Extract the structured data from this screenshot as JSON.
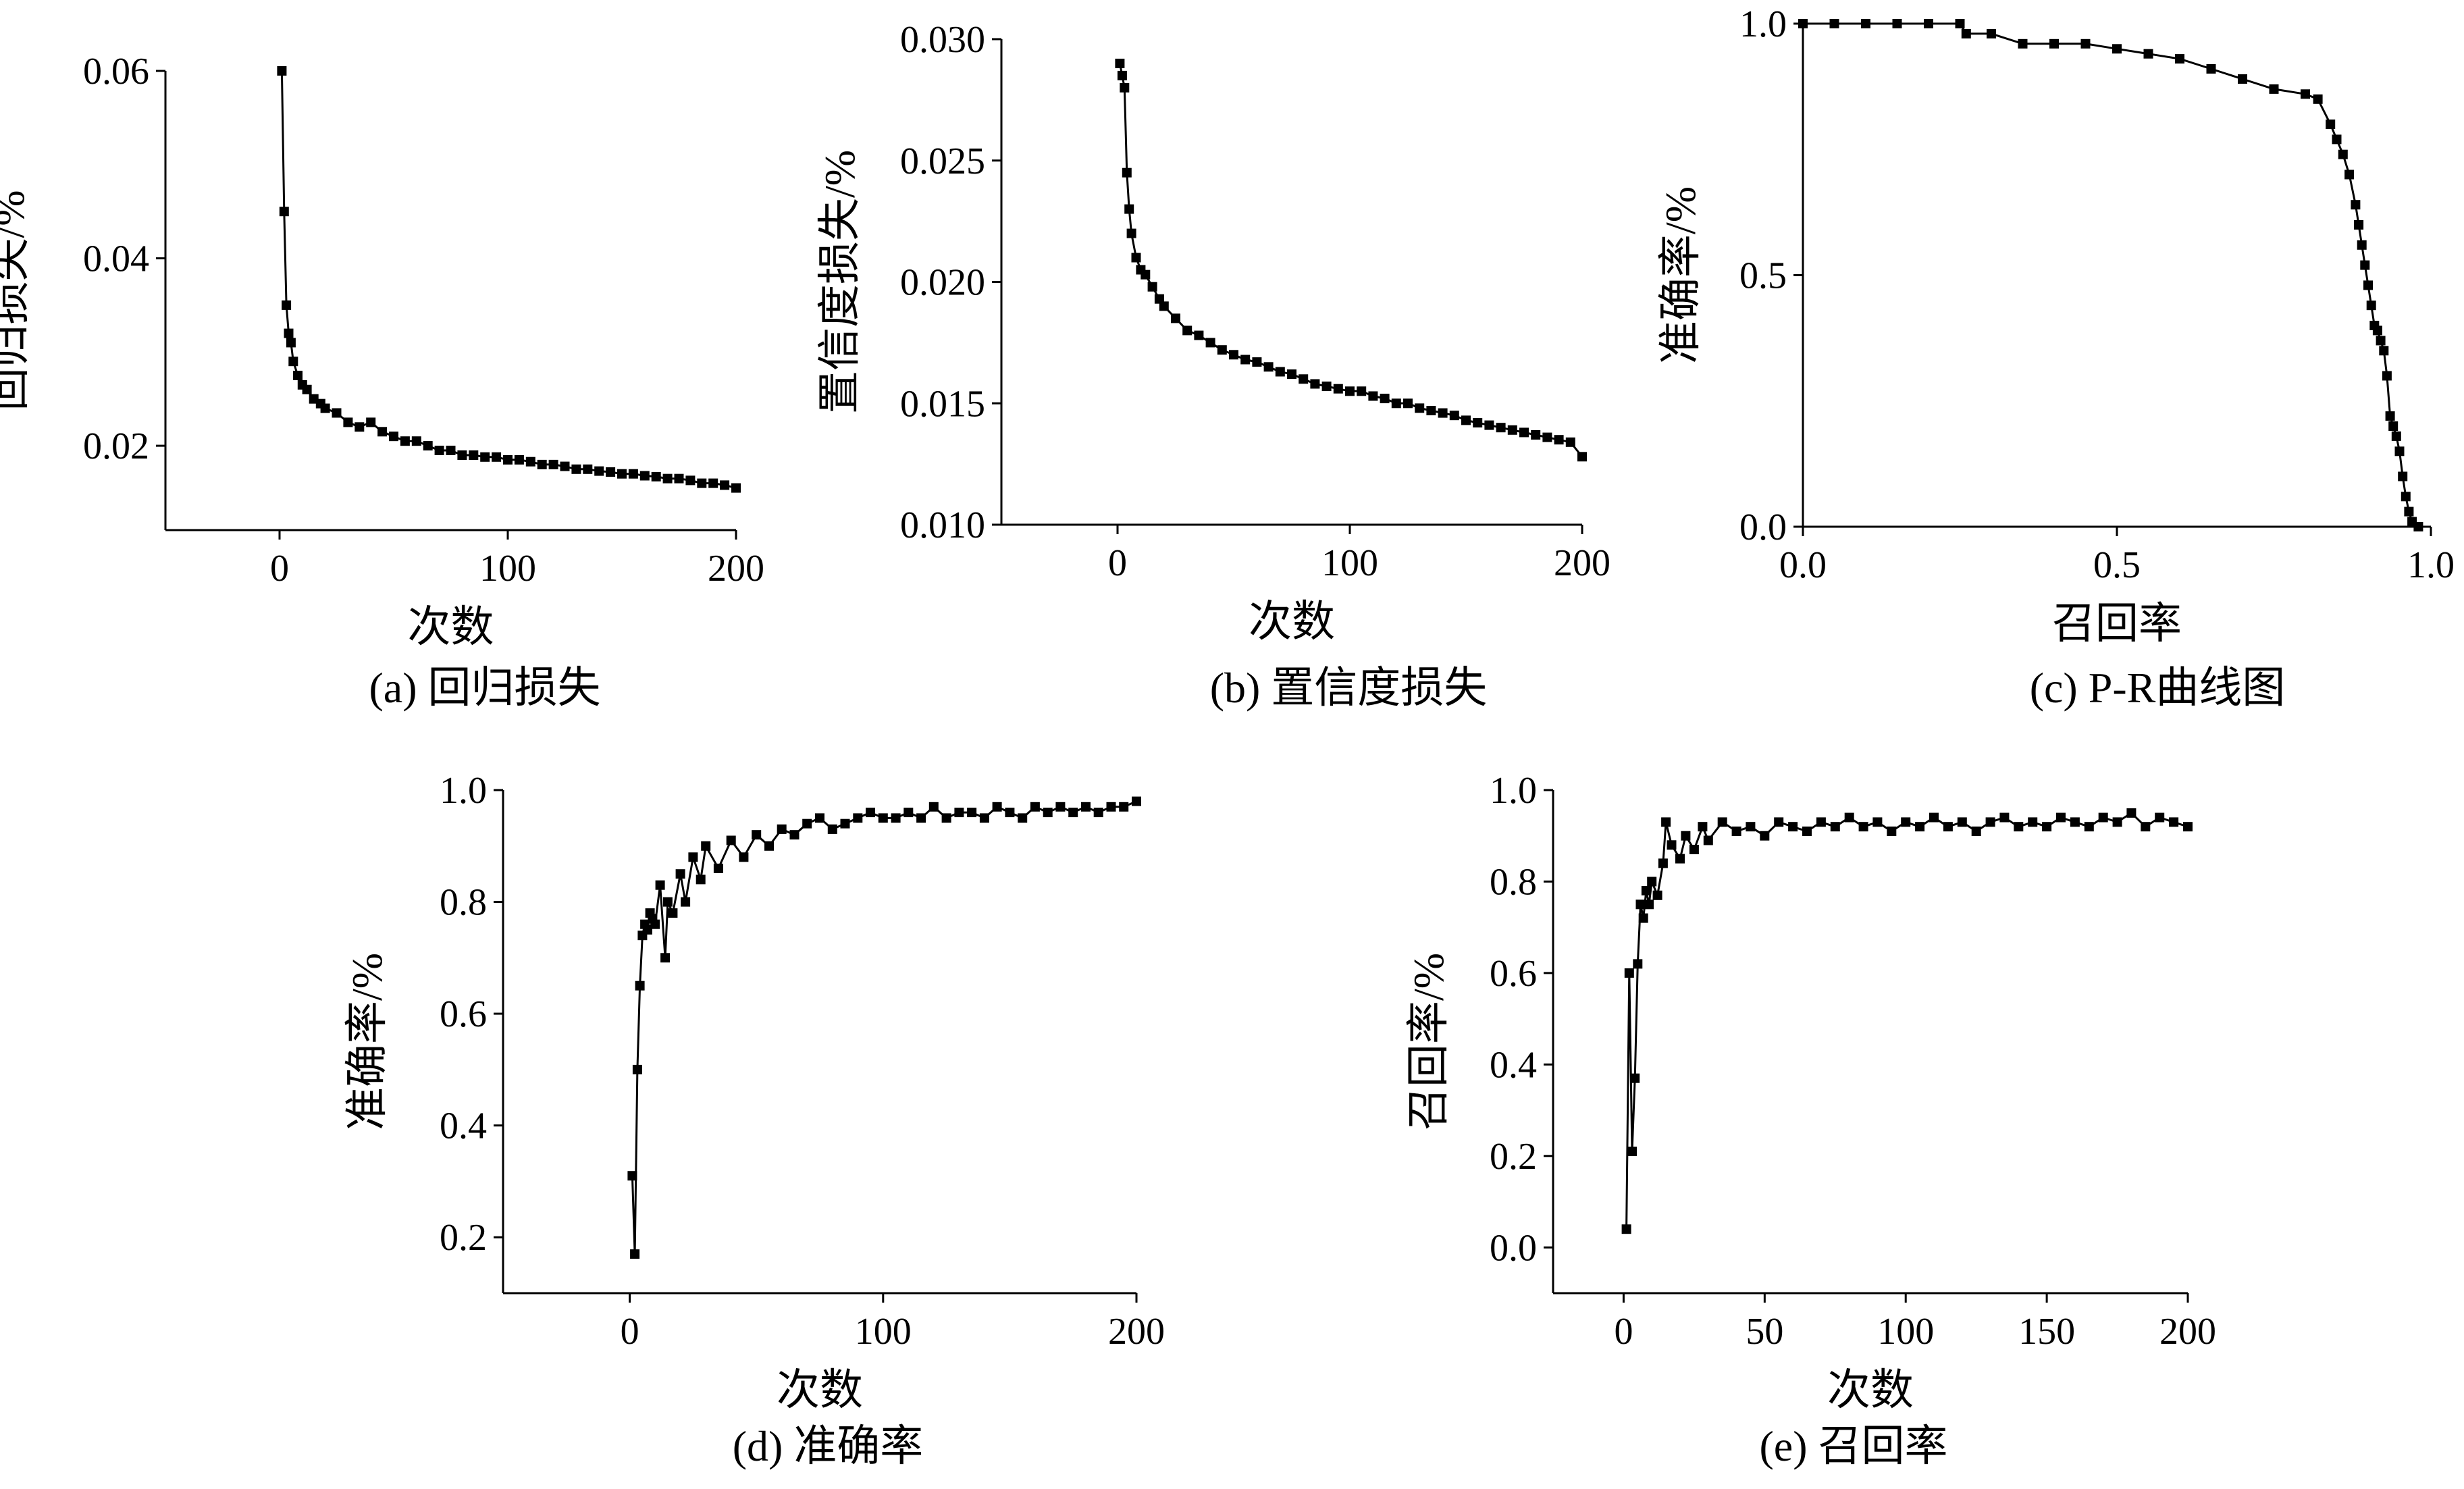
{
  "chart_data": [
    {
      "id": "a",
      "type": "line",
      "caption": "(a) 回归损失",
      "xlabel": "次数",
      "ylabel": "回归损失/%",
      "xlim": [
        -50,
        200
      ],
      "ylim": [
        0.011,
        0.06
      ],
      "xticks": [
        0,
        100,
        200
      ],
      "xtick_labels": [
        "0",
        "100",
        "200"
      ],
      "yticks": [
        0.02,
        0.04,
        0.06
      ],
      "ytick_labels": [
        "0.02",
        "0.04",
        "0.06"
      ],
      "marker": "square",
      "grid": false,
      "series": [
        {
          "x": [
            1,
            2,
            3,
            4,
            5,
            6,
            8,
            10,
            12,
            15,
            18,
            20,
            25,
            30,
            35,
            40,
            45,
            50,
            55,
            60,
            65,
            70,
            75,
            80,
            85,
            90,
            95,
            100,
            105,
            110,
            115,
            120,
            125,
            130,
            135,
            140,
            145,
            150,
            155,
            160,
            165,
            170,
            175,
            180,
            185,
            190,
            195,
            200
          ],
          "y": [
            0.06,
            0.045,
            0.035,
            0.032,
            0.031,
            0.029,
            0.0275,
            0.0265,
            0.026,
            0.025,
            0.0245,
            0.024,
            0.0235,
            0.0225,
            0.022,
            0.0225,
            0.0215,
            0.021,
            0.0205,
            0.0205,
            0.02,
            0.0195,
            0.0195,
            0.019,
            0.019,
            0.0188,
            0.0188,
            0.0185,
            0.0185,
            0.0183,
            0.018,
            0.018,
            0.0178,
            0.0175,
            0.0175,
            0.0173,
            0.0172,
            0.017,
            0.017,
            0.0168,
            0.0167,
            0.0165,
            0.0165,
            0.0163,
            0.016,
            0.016,
            0.0158,
            0.0155
          ]
        }
      ]
    },
    {
      "id": "b",
      "type": "line",
      "caption": "(b) 置信度损失",
      "xlabel": "次数",
      "ylabel": "置信度损失/%",
      "xlim": [
        -50,
        200
      ],
      "ylim": [
        0.01,
        0.03
      ],
      "xticks": [
        0,
        100,
        200
      ],
      "xtick_labels": [
        "0",
        "100",
        "200"
      ],
      "yticks": [
        0.01,
        0.015,
        0.02,
        0.025,
        0.03
      ],
      "ytick_labels": [
        "0.010",
        "0.015",
        "0.020",
        "0.025",
        "0.030"
      ],
      "marker": "square",
      "grid": false,
      "series": [
        {
          "x": [
            1,
            2,
            3,
            4,
            5,
            6,
            8,
            10,
            12,
            15,
            18,
            20,
            25,
            30,
            35,
            40,
            45,
            50,
            55,
            60,
            65,
            70,
            75,
            80,
            85,
            90,
            95,
            100,
            105,
            110,
            115,
            120,
            125,
            130,
            135,
            140,
            145,
            150,
            155,
            160,
            165,
            170,
            175,
            180,
            185,
            190,
            195,
            200
          ],
          "y": [
            0.029,
            0.0285,
            0.028,
            0.0245,
            0.023,
            0.022,
            0.021,
            0.0205,
            0.0203,
            0.0198,
            0.0193,
            0.019,
            0.0185,
            0.018,
            0.0178,
            0.0175,
            0.0172,
            0.017,
            0.0168,
            0.0167,
            0.0165,
            0.0163,
            0.0162,
            0.016,
            0.0158,
            0.0157,
            0.0156,
            0.0155,
            0.0155,
            0.0153,
            0.0152,
            0.015,
            0.015,
            0.0148,
            0.0147,
            0.0146,
            0.0145,
            0.0143,
            0.0142,
            0.0141,
            0.014,
            0.0139,
            0.0138,
            0.0137,
            0.0136,
            0.0135,
            0.0134,
            0.0128
          ]
        }
      ]
    },
    {
      "id": "c",
      "type": "line",
      "caption": "(c) P-R曲线图",
      "xlabel": "召回率",
      "ylabel": "准确率/%",
      "xlim": [
        0,
        1
      ],
      "ylim": [
        0,
        1
      ],
      "xticks": [
        0,
        0.5,
        1
      ],
      "xtick_labels": [
        "0.0",
        "0.5",
        "1.0"
      ],
      "yticks": [
        0,
        0.5,
        1
      ],
      "ytick_labels": [
        "0.0",
        "0.5",
        "1.0"
      ],
      "marker": "square",
      "grid": false,
      "series": [
        {
          "x": [
            0,
            0.05,
            0.1,
            0.15,
            0.2,
            0.25,
            0.26,
            0.3,
            0.35,
            0.4,
            0.45,
            0.5,
            0.55,
            0.6,
            0.65,
            0.7,
            0.75,
            0.8,
            0.82,
            0.84,
            0.85,
            0.86,
            0.87,
            0.88,
            0.885,
            0.89,
            0.895,
            0.9,
            0.905,
            0.91,
            0.915,
            0.92,
            0.925,
            0.93,
            0.935,
            0.94,
            0.945,
            0.95,
            0.955,
            0.96,
            0.965,
            0.97,
            0.98
          ],
          "y": [
            1,
            1,
            1,
            1,
            1,
            1,
            0.98,
            0.98,
            0.96,
            0.96,
            0.96,
            0.95,
            0.94,
            0.93,
            0.91,
            0.89,
            0.87,
            0.86,
            0.85,
            0.8,
            0.77,
            0.74,
            0.7,
            0.64,
            0.6,
            0.56,
            0.52,
            0.48,
            0.44,
            0.4,
            0.39,
            0.37,
            0.35,
            0.3,
            0.22,
            0.2,
            0.18,
            0.15,
            0.1,
            0.06,
            0.03,
            0.01,
            0
          ]
        }
      ]
    },
    {
      "id": "d",
      "type": "line",
      "caption": "(d) 准确率",
      "xlabel": "次数",
      "ylabel": "准确率/%",
      "xlim": [
        -50,
        200
      ],
      "ylim": [
        0.1,
        1
      ],
      "xticks": [
        0,
        100,
        200
      ],
      "xtick_labels": [
        "0",
        "100",
        "200"
      ],
      "yticks": [
        0.2,
        0.4,
        0.6,
        0.8,
        1
      ],
      "ytick_labels": [
        "0.2",
        "0.4",
        "0.6",
        "0.8",
        "1.0"
      ],
      "marker": "square",
      "grid": false,
      "series": [
        {
          "x": [
            1,
            2,
            3,
            4,
            5,
            6,
            7,
            8,
            9,
            10,
            12,
            14,
            15,
            17,
            20,
            22,
            25,
            28,
            30,
            35,
            40,
            45,
            50,
            55,
            60,
            65,
            70,
            75,
            80,
            85,
            90,
            95,
            100,
            105,
            110,
            115,
            120,
            125,
            130,
            135,
            140,
            145,
            150,
            155,
            160,
            165,
            170,
            175,
            180,
            185,
            190,
            195,
            200
          ],
          "y": [
            0.31,
            0.17,
            0.5,
            0.65,
            0.74,
            0.76,
            0.75,
            0.78,
            0.77,
            0.76,
            0.83,
            0.7,
            0.8,
            0.78,
            0.85,
            0.8,
            0.88,
            0.84,
            0.9,
            0.86,
            0.91,
            0.88,
            0.92,
            0.9,
            0.93,
            0.92,
            0.94,
            0.95,
            0.93,
            0.94,
            0.95,
            0.96,
            0.95,
            0.95,
            0.96,
            0.95,
            0.97,
            0.95,
            0.96,
            0.96,
            0.95,
            0.97,
            0.96,
            0.95,
            0.97,
            0.96,
            0.97,
            0.96,
            0.97,
            0.96,
            0.97,
            0.97,
            0.98
          ]
        }
      ]
    },
    {
      "id": "e",
      "type": "line",
      "caption": "(e) 召回率",
      "xlabel": "次数",
      "ylabel": "召回率/%",
      "xlim": [
        -25,
        200
      ],
      "ylim": [
        -0.1,
        1
      ],
      "xticks": [
        0,
        50,
        100,
        150,
        200
      ],
      "xtick_labels": [
        "0",
        "50",
        "100",
        "150",
        "200"
      ],
      "yticks": [
        0,
        0.2,
        0.4,
        0.6,
        0.8,
        1
      ],
      "ytick_labels": [
        "0.0",
        "0.2",
        "0.4",
        "0.6",
        "0.8",
        "1.0"
      ],
      "marker": "square",
      "grid": false,
      "series": [
        {
          "x": [
            1,
            2,
            3,
            4,
            5,
            6,
            7,
            8,
            9,
            10,
            12,
            14,
            15,
            17,
            20,
            22,
            25,
            28,
            30,
            35,
            40,
            45,
            50,
            55,
            60,
            65,
            70,
            75,
            80,
            85,
            90,
            95,
            100,
            105,
            110,
            115,
            120,
            125,
            130,
            135,
            140,
            145,
            150,
            155,
            160,
            165,
            170,
            175,
            180,
            185,
            190,
            195,
            200
          ],
          "y": [
            0.04,
            0.6,
            0.21,
            0.37,
            0.62,
            0.75,
            0.72,
            0.78,
            0.75,
            0.8,
            0.77,
            0.84,
            0.93,
            0.88,
            0.85,
            0.9,
            0.87,
            0.92,
            0.89,
            0.93,
            0.91,
            0.92,
            0.9,
            0.93,
            0.92,
            0.91,
            0.93,
            0.92,
            0.94,
            0.92,
            0.93,
            0.91,
            0.93,
            0.92,
            0.94,
            0.92,
            0.93,
            0.91,
            0.93,
            0.94,
            0.92,
            0.93,
            0.92,
            0.94,
            0.93,
            0.92,
            0.94,
            0.93,
            0.95,
            0.92,
            0.94,
            0.93,
            0.92
          ]
        }
      ]
    }
  ]
}
